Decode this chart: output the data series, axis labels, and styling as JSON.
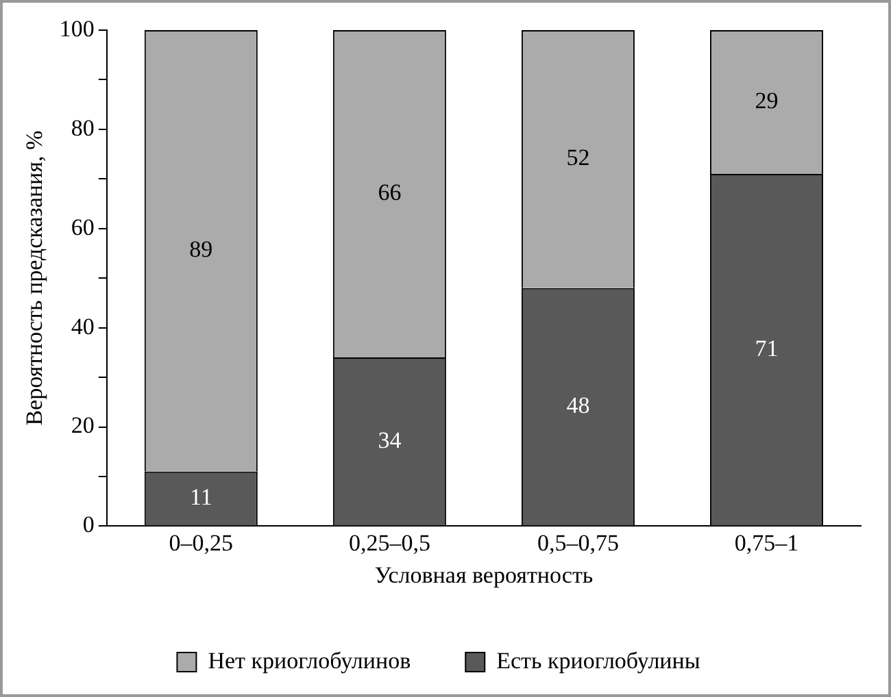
{
  "chart_data": {
    "type": "bar",
    "stacked": true,
    "xlabel": "Условная вероятность",
    "ylabel": "Вероятность предсказания, %",
    "categories": [
      "0–0,25",
      "0,25–0,5",
      "0,5–0,75",
      "0,75–1"
    ],
    "series": [
      {
        "name": "Есть криоглобулины",
        "color": "#595959",
        "values": [
          11,
          34,
          48,
          71
        ]
      },
      {
        "name": "Нет криоглобулинов",
        "color": "#ababab",
        "values": [
          89,
          66,
          52,
          29
        ]
      }
    ],
    "ylim": [
      0,
      100
    ],
    "yticks": [
      0,
      {
        "value": 10,
        "label": null
      },
      20,
      {
        "value": 30,
        "label": null
      },
      40,
      {
        "value": 50,
        "label": null
      },
      60,
      {
        "value": 70,
        "label": null
      },
      80,
      {
        "value": 90,
        "label": null
      },
      100
    ],
    "grid": false,
    "legend": "bottom",
    "data_labels": true
  }
}
